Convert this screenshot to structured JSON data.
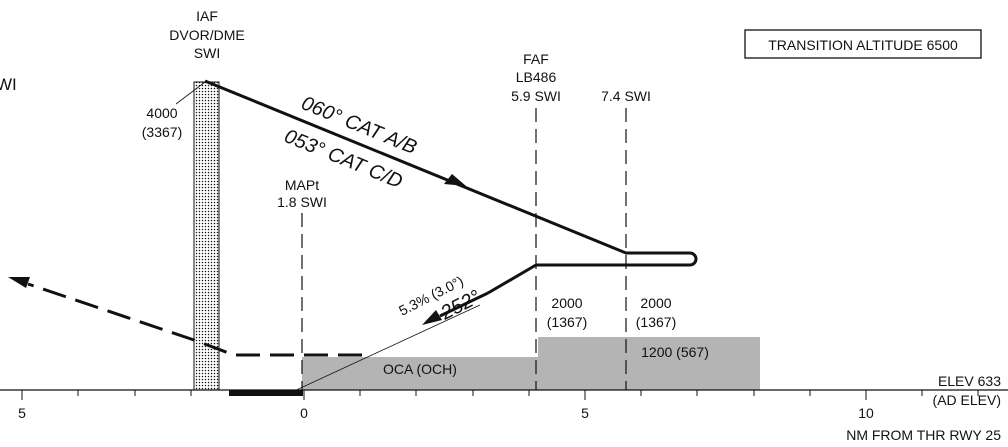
{
  "chart": {
    "title_box": "TRANSITION ALTITUDE 6500",
    "elevation_label": "ELEV 633",
    "ad_elev_label": "(AD ELEV)",
    "x_axis_label": "NM FROM THR RWY 25",
    "x_ticks": [
      "5",
      "0",
      "5",
      "10"
    ],
    "cropped_text": "WI"
  },
  "fixes": {
    "iaf": {
      "line1": "IAF",
      "line2": "DVOR/DME",
      "line3": "SWI",
      "alt": "4000",
      "alt_height": "(3367)"
    },
    "faf": {
      "line1": "FAF",
      "line2": "LB486",
      "line3": "5.9 SWI",
      "alt": "2000",
      "alt_height": "(1367)"
    },
    "fix_74": {
      "label": "7.4 SWI",
      "alt": "2000",
      "alt_height": "(1367)"
    },
    "mapt": {
      "line1": "MAPt",
      "line2": "1.8 SWI"
    }
  },
  "tracks": {
    "cat_ab": "060° CAT A/B",
    "cat_cd": "053° CAT C/D",
    "missed_grad": "5.3% (3.0°)",
    "missed_course": "252°"
  },
  "oca": {
    "label": "OCA (OCH)",
    "value": "1200 (567)"
  },
  "colors": {
    "ink": "#111111",
    "shading": "#b4b4b4",
    "background": "#ffffff"
  }
}
